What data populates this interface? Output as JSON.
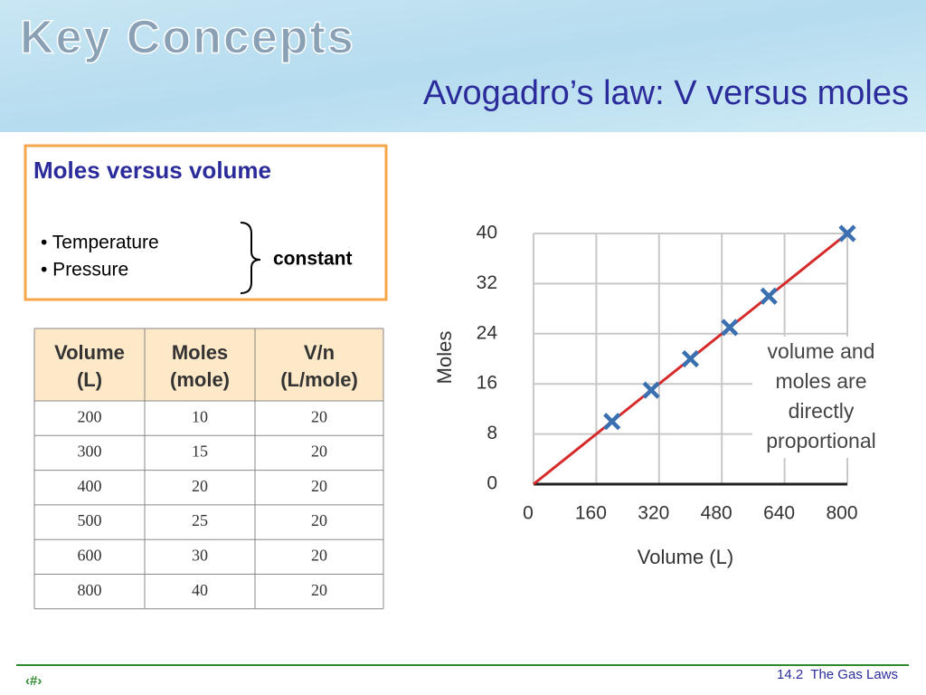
{
  "header": {
    "kicker": "Key Concepts",
    "title": "Avogadro’s law: V versus moles"
  },
  "box": {
    "title": "Moles versus volume",
    "bullets": [
      "• Temperature",
      "• Pressure"
    ],
    "note": "constant"
  },
  "table": {
    "header": [
      [
        "Volume",
        "(L)"
      ],
      [
        "Moles",
        "(mole)"
      ],
      [
        "V/n",
        "(L/mole)"
      ]
    ],
    "rows": [
      [
        200,
        10,
        20
      ],
      [
        300,
        15,
        20
      ],
      [
        400,
        20,
        20
      ],
      [
        500,
        25,
        20
      ],
      [
        600,
        30,
        20
      ],
      [
        800,
        40,
        20
      ]
    ]
  },
  "chart_data": {
    "type": "scatter",
    "x_label": "Volume (L)",
    "y_label": "Moles",
    "x": [
      200,
      300,
      400,
      500,
      600,
      800
    ],
    "series": [
      {
        "color": "#3a6fb0",
        "values": [
          10,
          15,
          20,
          25,
          30,
          40
        ]
      }
    ],
    "trend_color": "#d62a2a",
    "xlim": [
      0,
      800
    ],
    "ylim": [
      0,
      40
    ],
    "xticks": [
      0,
      160,
      320,
      480,
      640,
      800
    ],
    "yticks": [
      0,
      8,
      16,
      24,
      32,
      40
    ],
    "grid": true,
    "annotation": [
      "volume and",
      "moles are",
      "directly",
      "proportional"
    ]
  },
  "footer": {
    "section": "14.2  The Gas Laws",
    "page": "‹#›"
  }
}
